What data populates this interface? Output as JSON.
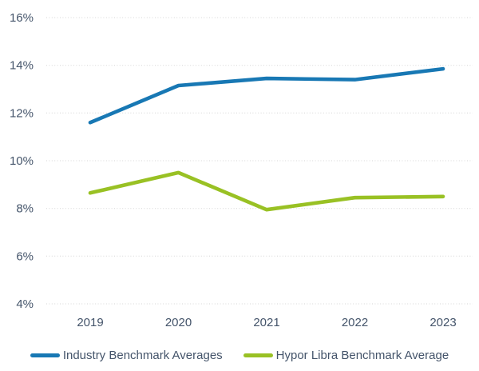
{
  "chart_data": {
    "type": "line",
    "title": "",
    "xlabel": "",
    "ylabel": "",
    "categories": [
      "2019",
      "2020",
      "2021",
      "2022",
      "2023"
    ],
    "series": [
      {
        "name": "Industry Benchmark Averages",
        "color": "#1878B4",
        "values": [
          11.6,
          13.15,
          13.45,
          13.4,
          13.85
        ]
      },
      {
        "name": "Hypor Libra Benchmark Average",
        "color": "#99C124",
        "values": [
          8.65,
          9.5,
          7.95,
          8.45,
          8.5
        ]
      }
    ],
    "ylim": [
      4,
      16
    ],
    "y_ticks": [
      {
        "value": 16,
        "label": "16%"
      },
      {
        "value": 14,
        "label": "14%"
      },
      {
        "value": 12,
        "label": "12%"
      },
      {
        "value": 10,
        "label": "10%"
      },
      {
        "value": 8,
        "label": "8%"
      },
      {
        "value": 6,
        "label": "6%"
      },
      {
        "value": 4,
        "label": "4%"
      }
    ],
    "grid": "horizontal-dotted",
    "legend_position": "bottom"
  },
  "styles": {
    "background": "#FFFFFF",
    "axis_text_color": "#44546A",
    "gridline_color": "#D6D6D6"
  }
}
